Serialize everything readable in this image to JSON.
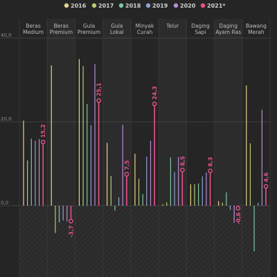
{
  "chart_data": {
    "type": "bar",
    "title": "",
    "xlabel": "",
    "ylabel": "",
    "ylim": [
      -15,
      40
    ],
    "yticks": [
      "40,0",
      "20,0",
      "0,0"
    ],
    "yticks_values": [
      40,
      20,
      0
    ],
    "grid": true,
    "legend_position": "top",
    "categories": [
      [
        "Beras",
        "Medium"
      ],
      [
        "Beras",
        "Premium"
      ],
      [
        "Gula",
        "Premium"
      ],
      [
        "Gula",
        "Lokal"
      ],
      [
        "Minyak",
        "Curah"
      ],
      [
        "Telur"
      ],
      [
        "Daging",
        "Sapi"
      ],
      [
        "Daging",
        "Ayam Ras"
      ],
      [
        "Bawang",
        "Merah"
      ]
    ],
    "series": [
      {
        "name": "2016",
        "color": "#e8d58a",
        "values": [
          20.3,
          33.5,
          35.0,
          15.0,
          12.4,
          0.3,
          5.1,
          1.1,
          28.7
        ]
      },
      {
        "name": "2017",
        "color": "#b9cc6e",
        "values": [
          10.8,
          -6.5,
          33.3,
          7.1,
          6.4,
          0.8,
          5.1,
          0.7,
          14.9
        ]
      },
      {
        "name": "2018",
        "color": "#7fc8a3",
        "values": [
          16.0,
          -4.0,
          24.3,
          -1.2,
          2.8,
          11.5,
          5.3,
          3.2,
          -10.9
        ]
      },
      {
        "name": "2019",
        "color": "#8fa3d6",
        "values": [
          15.5,
          -3.5,
          19.2,
          2.0,
          11.7,
          8.0,
          7.0,
          -1.0,
          0.7
        ]
      },
      {
        "name": "2020",
        "color": "#b58ed9",
        "values": [
          15.9,
          -3.7,
          33.8,
          19.3,
          15.5,
          11.6,
          7.9,
          -4.1,
          22.9
        ]
      },
      {
        "name": "2021*",
        "color": "#e8528a",
        "values": [
          15.2,
          -3.7,
          25.1,
          7.5,
          24.3,
          8.5,
          8.3,
          -0.6,
          4.6
        ]
      }
    ],
    "data_labels": [
      "15,2",
      "-3,7",
      "25,1",
      "7,5",
      "24,3",
      "8,5",
      "8,3",
      "-0,6",
      "4,6"
    ]
  }
}
